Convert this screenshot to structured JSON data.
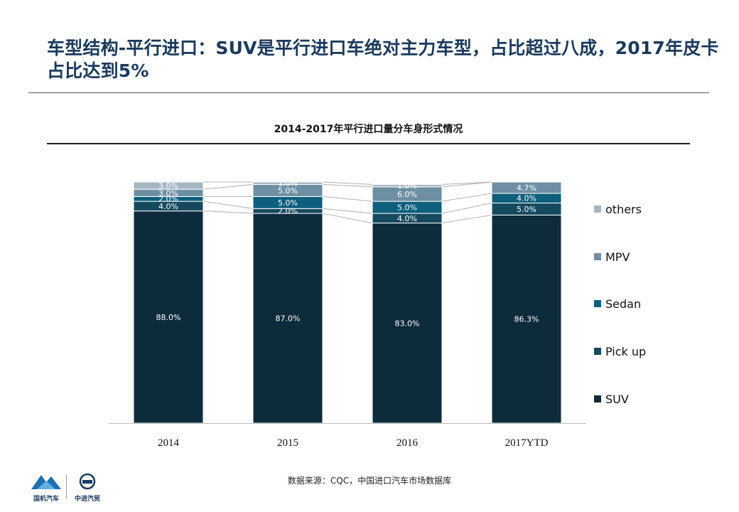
{
  "page": {
    "title": "车型结构-平行进口：SUV是平行进口车绝对主力车型，占比超过八成，2017年皮卡占比达到5%",
    "source": "数据来源：CQC，中国进口汽车市场数据库",
    "logos": [
      "国机汽车",
      "中进汽贸"
    ]
  },
  "chart_data": {
    "type": "bar",
    "stacked": true,
    "title": "2014-2017年平行进口量分车身形式情况",
    "categories": [
      "2014",
      "2015",
      "2016",
      "2017YTD"
    ],
    "ylim": [
      0,
      100
    ],
    "legend_position": "right",
    "series": [
      {
        "name": "SUV",
        "values": [
          88.0,
          87.0,
          83.0,
          86.3
        ],
        "labels": [
          "88.0%",
          "87.0%",
          "83.0%",
          "86.3%"
        ],
        "color": "#0e2b3c"
      },
      {
        "name": "Pick up",
        "values": [
          4.0,
          2.0,
          4.0,
          5.0
        ],
        "labels": [
          "4.0%",
          "2.0%",
          "4.0%",
          "5.0%"
        ],
        "color": "#154a5e"
      },
      {
        "name": "Sedan",
        "values": [
          2.0,
          5.0,
          5.0,
          4.0
        ],
        "labels": [
          "2.0%",
          "5.0%",
          "5.0%",
          "4.0%"
        ],
        "color": "#0d5f7d"
      },
      {
        "name": "MPV",
        "values": [
          3.0,
          5.0,
          6.0,
          4.7
        ],
        "labels": [
          "3.0%",
          "5.0%",
          "6.0%",
          "4.7%"
        ],
        "color": "#6e8fa3"
      },
      {
        "name": "others",
        "values": [
          3.0,
          1.0,
          1.0,
          0
        ],
        "labels": [
          "3.0%",
          "1.0%",
          "1.0%",
          ""
        ],
        "color": "#a4b5c2"
      }
    ]
  }
}
